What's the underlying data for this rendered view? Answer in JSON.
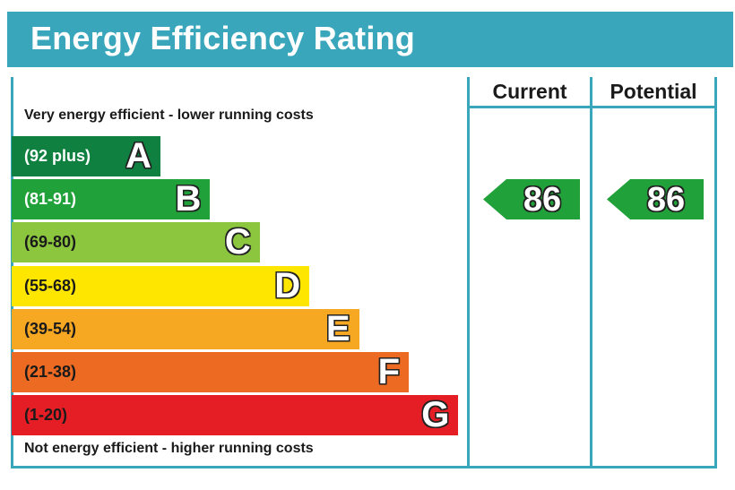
{
  "title": "Energy Efficiency Rating",
  "columns": {
    "current": "Current",
    "potential": "Potential"
  },
  "captions": {
    "top": "Very energy efficient - lower running costs",
    "bottom": "Not energy efficient - higher running costs"
  },
  "colors": {
    "header": "#3aa6bb",
    "A": "#0f8040",
    "B": "#21a13a",
    "C": "#8cc63f",
    "D": "#ffe600",
    "E": "#f7a823",
    "F": "#ed6a23",
    "G": "#e51e25"
  },
  "chart_data": {
    "type": "bar",
    "title": "Energy Efficiency Rating",
    "categories": [
      "A",
      "B",
      "C",
      "D",
      "E",
      "F",
      "G"
    ],
    "bands": [
      {
        "letter": "A",
        "range": "(92 plus)",
        "min": 92,
        "max": 100,
        "color": "#0f8040",
        "text_color": "#ffffff"
      },
      {
        "letter": "B",
        "range": "(81-91)",
        "min": 81,
        "max": 91,
        "color": "#21a13a",
        "text_color": "#ffffff"
      },
      {
        "letter": "C",
        "range": "(69-80)",
        "min": 69,
        "max": 80,
        "color": "#8cc63f",
        "text_color": "#1a1a1a"
      },
      {
        "letter": "D",
        "range": "(55-68)",
        "min": 55,
        "max": 68,
        "color": "#ffe600",
        "text_color": "#1a1a1a"
      },
      {
        "letter": "E",
        "range": "(39-54)",
        "min": 39,
        "max": 54,
        "color": "#f7a823",
        "text_color": "#1a1a1a"
      },
      {
        "letter": "F",
        "range": "(21-38)",
        "min": 21,
        "max": 38,
        "color": "#ed6a23",
        "text_color": "#1a1a1a"
      },
      {
        "letter": "G",
        "range": "(1-20)",
        "min": 1,
        "max": 20,
        "color": "#e51e25",
        "text_color": "#1a1a1a"
      }
    ],
    "current": {
      "label": "Current",
      "value": 86,
      "band": "B",
      "color": "#21a13a"
    },
    "potential": {
      "label": "Potential",
      "value": 86,
      "band": "B",
      "color": "#21a13a"
    }
  }
}
